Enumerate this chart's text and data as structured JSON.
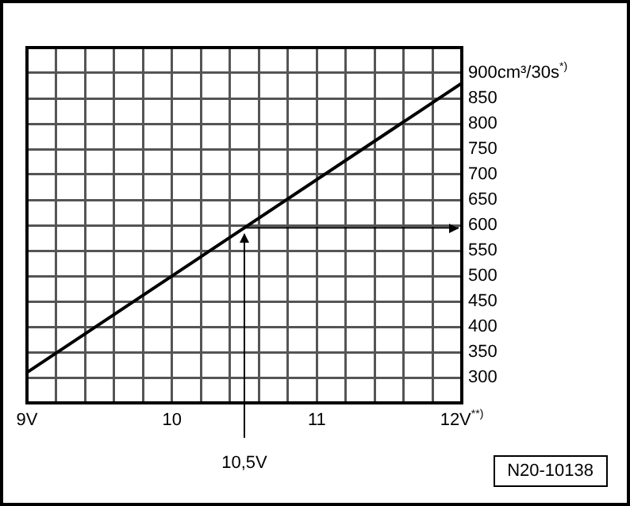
{
  "chart_data": {
    "type": "line",
    "x": [
      9,
      12
    ],
    "values": [
      310,
      880
    ],
    "color": "#000000",
    "marker": "none",
    "line_style": "solid",
    "xlim": [
      9,
      12
    ],
    "xticks": [
      {
        "value": 9,
        "label": "9V"
      },
      {
        "value": 9.2,
        "label": null
      },
      {
        "value": 9.4,
        "label": null
      },
      {
        "value": 9.6,
        "label": null
      },
      {
        "value": 9.8,
        "label": null
      },
      {
        "value": 10,
        "label": "10"
      },
      {
        "value": 10.2,
        "label": null
      },
      {
        "value": 10.4,
        "label": null
      },
      {
        "value": 10.6,
        "label": null
      },
      {
        "value": 10.8,
        "label": null
      },
      {
        "value": 11,
        "label": "11"
      },
      {
        "value": 11.2,
        "label": null
      },
      {
        "value": 11.4,
        "label": null
      },
      {
        "value": 11.6,
        "label": null
      },
      {
        "value": 11.8,
        "label": null
      },
      {
        "value": 12,
        "label": "12V$^{**)}$"
      }
    ],
    "ylim": [
      250,
      950
    ],
    "yticks": [
      300,
      350,
      400,
      450,
      500,
      550,
      600,
      650,
      700,
      750,
      800,
      850,
      {
        "value": 900,
        "label": "900cm³/30s$^{*)}$"
      }
    ],
    "grid": true,
    "legend": false,
    "ref_lines": [
      {
        "axis": "x",
        "value": 10.5,
        "label": "10,5V"
      },
      {
        "axis": "y",
        "value": 595
      }
    ],
    "annotations": [
      "N20-10138"
    ]
  }
}
